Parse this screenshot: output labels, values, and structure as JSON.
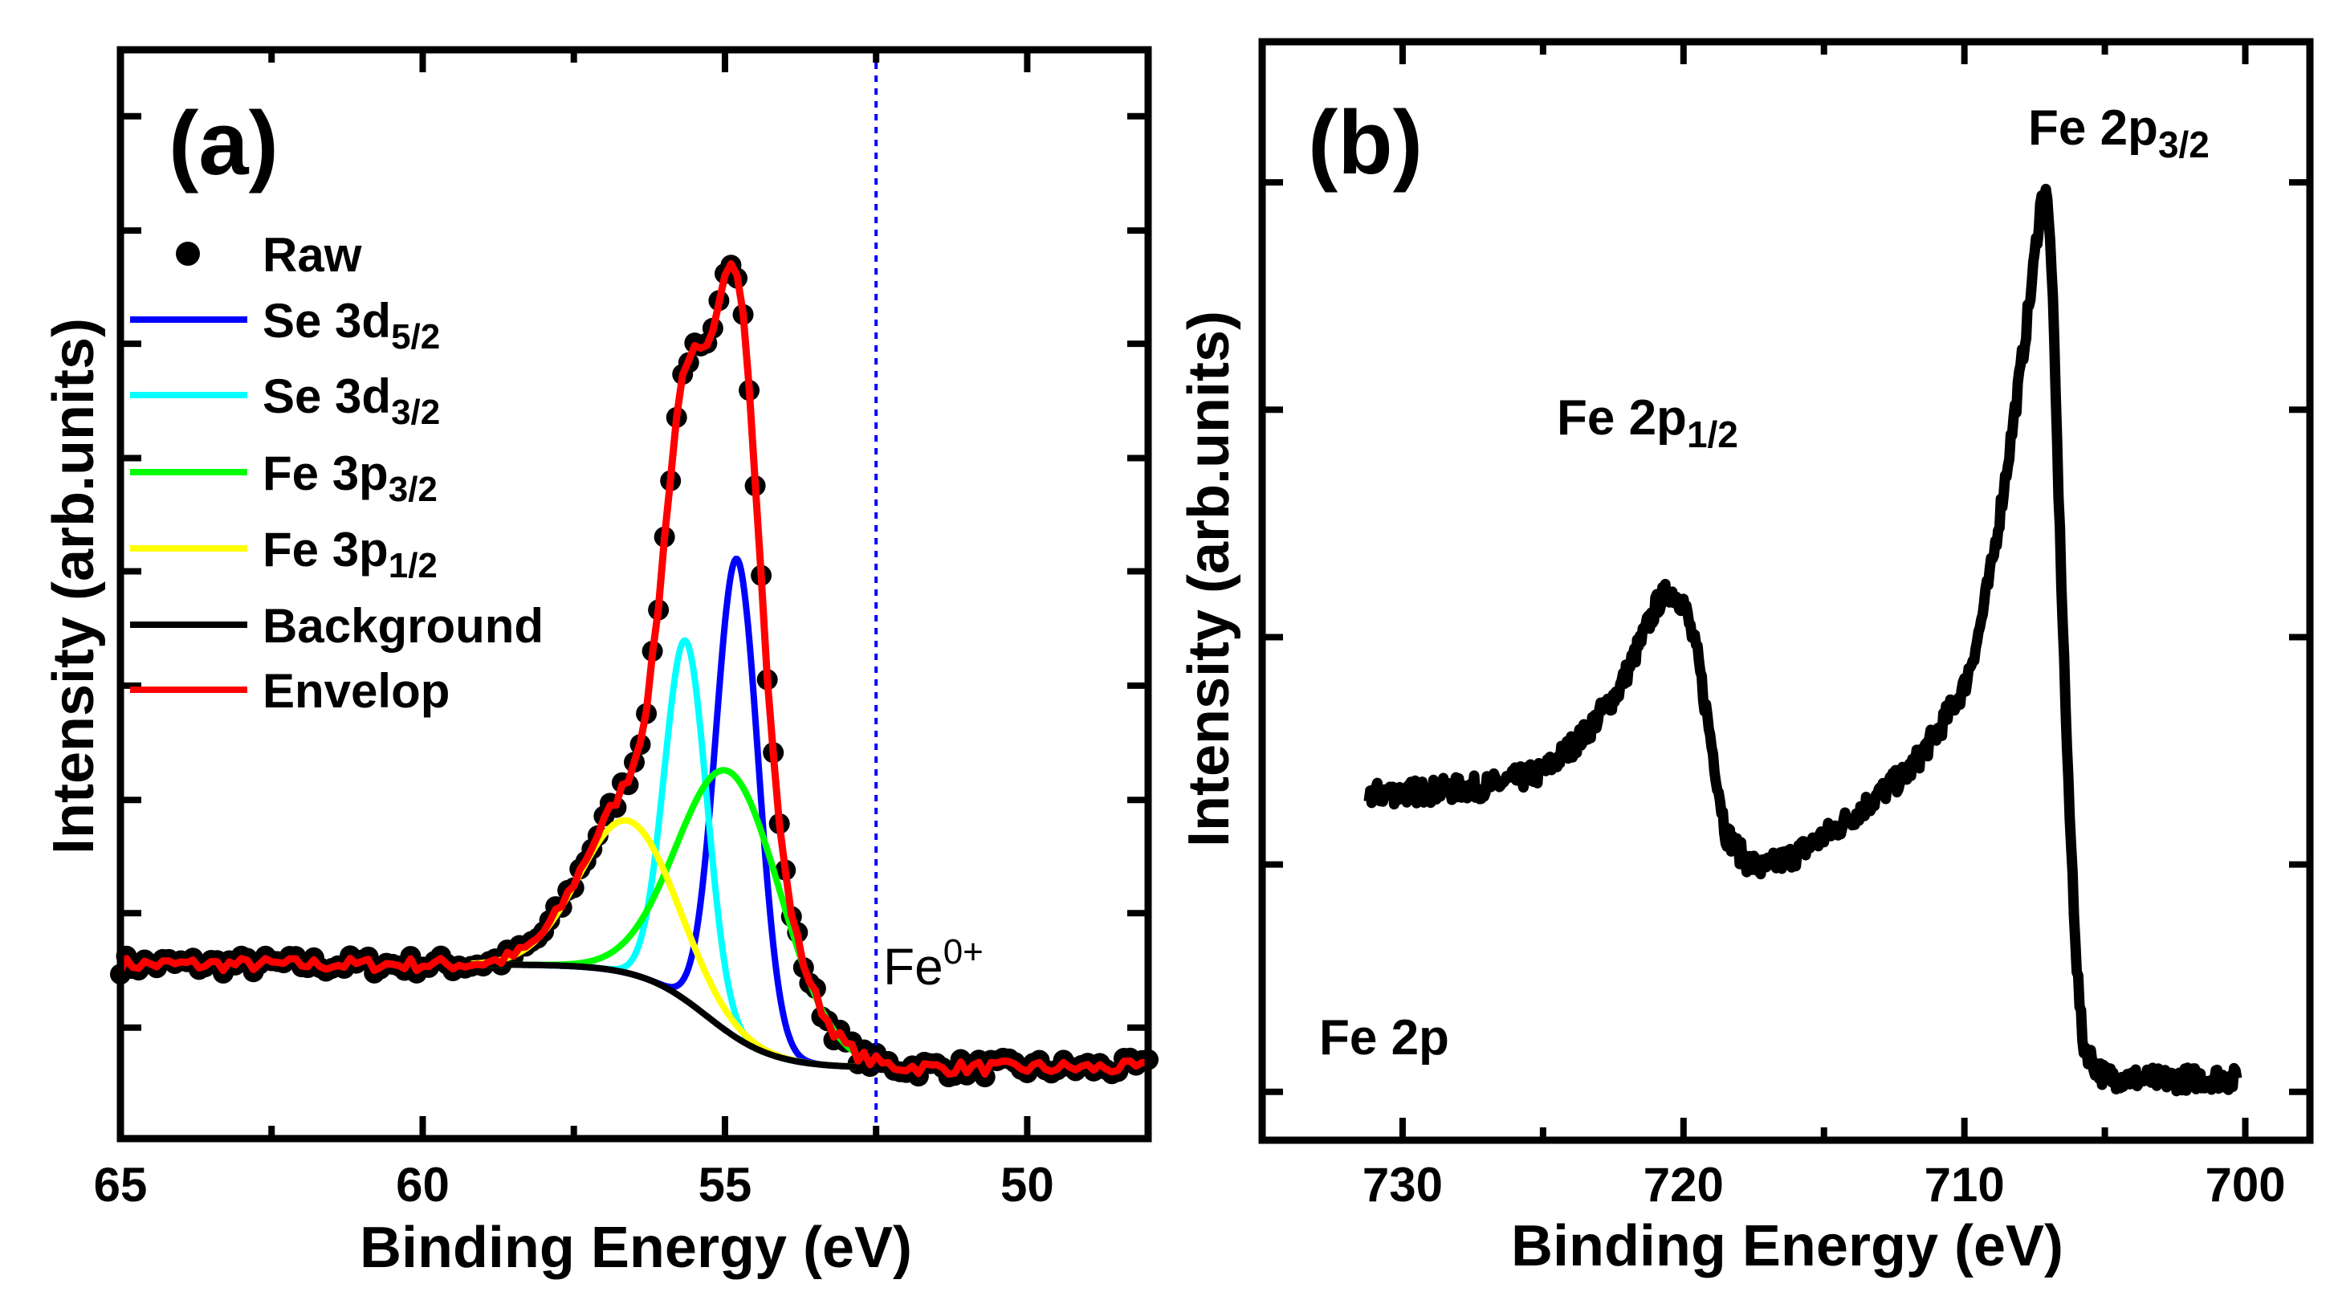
{
  "chart_data": [
    {
      "type": "scatter",
      "panel_label": "(a)",
      "xlabel": "Binding Energy (eV)",
      "ylabel": "Intensity (arb.units)",
      "xlim": [
        65,
        48
      ],
      "ylim": [
        0,
        1
      ],
      "xticks": [
        65,
        60,
        55,
        50
      ],
      "xticks_minor": [
        62.5,
        57.5,
        52.5
      ],
      "yticks": [
        0.102,
        0.207,
        0.311,
        0.416,
        0.521,
        0.625,
        0.73,
        0.834,
        0.939
      ],
      "legend_position": "top-left",
      "legend": [
        {
          "key": "raw",
          "label": "Raw",
          "sub": "",
          "color": "#000000",
          "marker": "dot"
        },
        {
          "key": "se3d52",
          "label": "Se 3d",
          "sub": "5/2",
          "color": "#0000ff"
        },
        {
          "key": "se3d32",
          "label": "Se 3d",
          "sub": "3/2",
          "color": "#00ffff"
        },
        {
          "key": "fe3p32",
          "label": "Fe 3p",
          "sub": "3/2",
          "color": "#00ff00"
        },
        {
          "key": "fe3p12",
          "label": "Fe 3p",
          "sub": "1/2",
          "color": "#ffff00"
        },
        {
          "key": "background",
          "label": "Background",
          "sub": "",
          "color": "#000000"
        },
        {
          "key": "envelope",
          "label": "Envelop",
          "sub": "",
          "color": "#ff0000"
        }
      ],
      "background": {
        "low": 0.065,
        "high": 0.16,
        "center_eV": 55.3,
        "width_eV": 0.55
      },
      "peaks": [
        {
          "key": "se3d52",
          "center_eV": 54.8,
          "amplitude": 0.44,
          "sigma_eV": 0.35,
          "color": "#0000ff"
        },
        {
          "key": "se3d32",
          "center_eV": 55.65,
          "amplitude": 0.33,
          "sigma_eV": 0.35,
          "color": "#00ffff"
        },
        {
          "key": "fe3p32",
          "center_eV": 54.9,
          "amplitude": 0.24,
          "sigma_eV": 0.85,
          "color": "#00ff00"
        },
        {
          "key": "fe3p12",
          "center_eV": 56.6,
          "amplitude": 0.14,
          "sigma_eV": 0.8,
          "color": "#ffff00"
        }
      ],
      "raw_step_eV": 0.1,
      "annotation": {
        "text": "Fe",
        "sup": "0+",
        "line_eV": 52.5,
        "line_color": "#0000ff"
      }
    },
    {
      "type": "line",
      "panel_label": "(b)",
      "xlabel": "Binding Energy (eV)",
      "ylabel": "Intensity (arb.units)",
      "xlim": [
        735,
        697.7
      ],
      "ylim": [
        0,
        1
      ],
      "xticks": [
        730,
        720,
        710,
        700
      ],
      "xticks_minor": [
        725,
        715,
        705
      ],
      "yticks": [
        0.044,
        0.251,
        0.458,
        0.665,
        0.872
      ],
      "annotations": [
        {
          "key": "p32",
          "text": "Fe 2p",
          "sub": "3/2"
        },
        {
          "key": "p12",
          "text": "Fe 2p",
          "sub": "1/2"
        },
        {
          "key": "region",
          "text": "Fe 2p",
          "sub": ""
        }
      ],
      "series": [
        {
          "name": "Fe 2p",
          "color": "#000000",
          "x": [
            731.2,
            729,
            727,
            725,
            723.5,
            722.3,
            721.5,
            720.9,
            720.5,
            720.0,
            719.5,
            719.0,
            718.5,
            717.8,
            717.2,
            716.0,
            714.5,
            713.0,
            712.0,
            711.0,
            710.0,
            709.5,
            709.0,
            708.5,
            708.0,
            707.6,
            707.3,
            707.1,
            706.9,
            706.6,
            706.3,
            706.0,
            705.8,
            705.4,
            705.0,
            703.0,
            701.0,
            700.3
          ],
          "y": [
            0.315,
            0.318,
            0.322,
            0.335,
            0.37,
            0.41,
            0.455,
            0.49,
            0.5,
            0.49,
            0.44,
            0.36,
            0.28,
            0.255,
            0.247,
            0.26,
            0.285,
            0.315,
            0.335,
            0.37,
            0.413,
            0.46,
            0.526,
            0.61,
            0.7,
            0.78,
            0.85,
            0.868,
            0.8,
            0.55,
            0.32,
            0.16,
            0.09,
            0.07,
            0.058,
            0.055,
            0.057,
            0.055
          ]
        }
      ]
    }
  ]
}
